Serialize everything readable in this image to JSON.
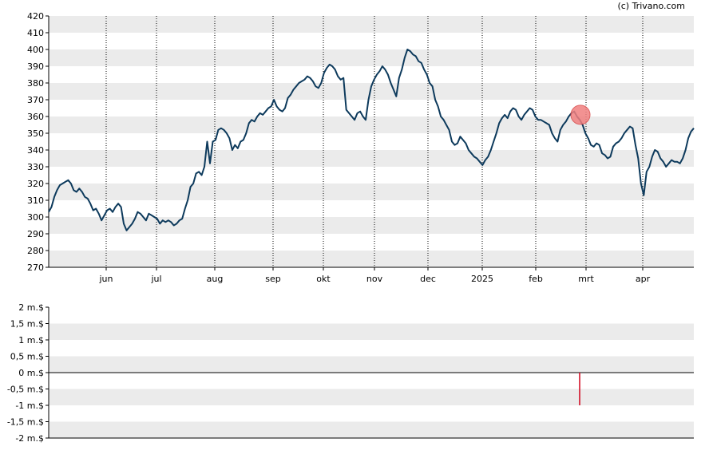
{
  "credit": "(c) Trivano.com",
  "colors": {
    "price_line": "#0d3a5c",
    "band": "#ebebeb",
    "marker_fill": "#f08080",
    "marker_stroke": "#d94a4a",
    "volume_bar": "#d0021b"
  },
  "chart_data": [
    {
      "type": "line",
      "title": "",
      "xlabel": "",
      "ylabel": "",
      "ylim": [
        270,
        420
      ],
      "yticks": [
        "270",
        "280",
        "290",
        "300",
        "310",
        "320",
        "330",
        "340",
        "350",
        "360",
        "370",
        "380",
        "390",
        "400",
        "410",
        "420"
      ],
      "grid": {
        "vertical_dotted": true,
        "horizontal_bands": true
      },
      "x_tick_labels": [
        "jun",
        "jul",
        "aug",
        "sep",
        "okt",
        "nov",
        "dec",
        "2025",
        "feb",
        "mrt",
        "apr"
      ],
      "series": [
        {
          "values": [
            303,
            306,
            312,
            316,
            319,
            320,
            321,
            322,
            320,
            316,
            315,
            317,
            315,
            312,
            311,
            308,
            304,
            305,
            302,
            298,
            301,
            304,
            305,
            303,
            306,
            308,
            306,
            296,
            292,
            294,
            296,
            299,
            303,
            302,
            300,
            298,
            302,
            301,
            300,
            299,
            296,
            298,
            297,
            298,
            297,
            295,
            296,
            298,
            299,
            305,
            310,
            318,
            320,
            326,
            327,
            325,
            330,
            345,
            332,
            345,
            346,
            352,
            353,
            352,
            350,
            347,
            340,
            343,
            341,
            345,
            346,
            350,
            356,
            358,
            357,
            360,
            362,
            361,
            363,
            365,
            366,
            370,
            366,
            364,
            363,
            365,
            371,
            373,
            376,
            378,
            380,
            381,
            382,
            384,
            383,
            381,
            378,
            377,
            380,
            386,
            389,
            391,
            390,
            388,
            384,
            382,
            383,
            364,
            362,
            360,
            358,
            362,
            363,
            360,
            358,
            370,
            378,
            382,
            385,
            387,
            390,
            388,
            385,
            380,
            376,
            372,
            383,
            388,
            395,
            400,
            399,
            397,
            396,
            393,
            392,
            388,
            385,
            380,
            378,
            370,
            366,
            360,
            358,
            355,
            352,
            345,
            343,
            344,
            348,
            346,
            344,
            340,
            338,
            336,
            335,
            333,
            331,
            334,
            336,
            340,
            345,
            350,
            356,
            359,
            361,
            359,
            363,
            365,
            364,
            360,
            358,
            361,
            363,
            365,
            364,
            360,
            358,
            358,
            357,
            356,
            355,
            350,
            347,
            345,
            352,
            355,
            357,
            360,
            362,
            363,
            360,
            358,
            355,
            350,
            347,
            343,
            342,
            344,
            343,
            338,
            337,
            335,
            336,
            342,
            344,
            345,
            347,
            350,
            352,
            354,
            353,
            343,
            335,
            320,
            313,
            327,
            330,
            336,
            340,
            339,
            335,
            333,
            330,
            332,
            334,
            333,
            333,
            332,
            335,
            340,
            347,
            351,
            353
          ],
          "value_count_note": ""
        }
      ],
      "annotations": [
        {
          "type": "marker",
          "at_label": "mrt",
          "value": 361
        }
      ]
    },
    {
      "type": "bar",
      "title": "",
      "xlabel": "",
      "ylabel": "",
      "ylim": [
        -2,
        2
      ],
      "yticks": [
        "2 m.$",
        "1,5 m.$",
        "1 m.$",
        "0,5 m.$",
        "0 m.$",
        "-0,5 m.$",
        "-1 m.$",
        "-1,5 m.$",
        "-2 m.$"
      ],
      "bars": [
        {
          "near_label": "mrt",
          "value": -1
        }
      ]
    }
  ]
}
